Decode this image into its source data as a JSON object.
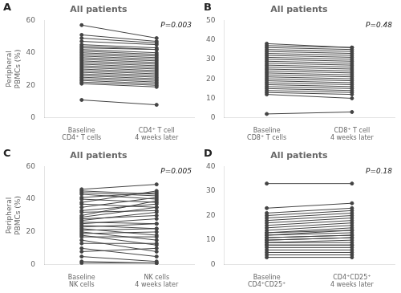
{
  "chart_data": [
    {
      "type": "line",
      "title": "All patients",
      "ylabel": "Peripheral\nPBMCs (%)",
      "annotations": [
        "A",
        "P=0.003"
      ],
      "categories": [
        "Baseline\nCD4⁺ T cells",
        "CD4⁺ T cell\n4 weeks later"
      ],
      "color": "#444444",
      "grid": false,
      "ylim": [
        0,
        60
      ],
      "yticks": [
        0,
        20,
        40,
        60
      ],
      "series": [
        {
          "values": [
            57,
            49
          ]
        },
        {
          "values": [
            51,
            47
          ]
        },
        {
          "values": [
            49,
            46
          ]
        },
        {
          "values": [
            47,
            45
          ]
        },
        {
          "values": [
            45,
            43
          ]
        },
        {
          "values": [
            44,
            42
          ]
        },
        {
          "values": [
            43,
            42
          ]
        },
        {
          "values": [
            42,
            40
          ]
        },
        {
          "values": [
            41,
            39
          ]
        },
        {
          "values": [
            40,
            38
          ]
        },
        {
          "values": [
            39,
            37
          ]
        },
        {
          "values": [
            38,
            36
          ]
        },
        {
          "values": [
            37,
            35
          ]
        },
        {
          "values": [
            36,
            34
          ]
        },
        {
          "values": [
            35,
            33
          ]
        },
        {
          "values": [
            34,
            32
          ]
        },
        {
          "values": [
            33,
            31
          ]
        },
        {
          "values": [
            32,
            30
          ]
        },
        {
          "values": [
            31,
            29
          ]
        },
        {
          "values": [
            30,
            28
          ]
        },
        {
          "values": [
            29,
            27
          ]
        },
        {
          "values": [
            28,
            26
          ]
        },
        {
          "values": [
            27,
            25
          ]
        },
        {
          "values": [
            26,
            24
          ]
        },
        {
          "values": [
            25,
            23
          ]
        },
        {
          "values": [
            24,
            22
          ]
        },
        {
          "values": [
            23,
            21
          ]
        },
        {
          "values": [
            22,
            20
          ]
        },
        {
          "values": [
            21,
            19
          ]
        },
        {
          "values": [
            11,
            8
          ]
        }
      ]
    },
    {
      "type": "line",
      "title": "All patients",
      "annotations": [
        "B",
        "P=0.48"
      ],
      "categories": [
        "Baseline\nCD8⁺ T cells",
        "CD8⁺ T cell\n4 weeks later"
      ],
      "color": "#444444",
      "grid": false,
      "ylim": [
        0,
        50
      ],
      "yticks": [
        0,
        10,
        20,
        30,
        40,
        50
      ],
      "series": [
        {
          "values": [
            38,
            36
          ]
        },
        {
          "values": [
            37,
            36
          ]
        },
        {
          "values": [
            36,
            35
          ]
        },
        {
          "values": [
            35,
            34
          ]
        },
        {
          "values": [
            34,
            33
          ]
        },
        {
          "values": [
            33,
            32
          ]
        },
        {
          "values": [
            32,
            31
          ]
        },
        {
          "values": [
            31,
            30
          ]
        },
        {
          "values": [
            30,
            29
          ]
        },
        {
          "values": [
            29,
            28
          ]
        },
        {
          "values": [
            28,
            27
          ]
        },
        {
          "values": [
            27,
            26
          ]
        },
        {
          "values": [
            26,
            25
          ]
        },
        {
          "values": [
            25,
            24
          ]
        },
        {
          "values": [
            24,
            23
          ]
        },
        {
          "values": [
            23,
            22
          ]
        },
        {
          "values": [
            22,
            21
          ]
        },
        {
          "values": [
            21,
            20
          ]
        },
        {
          "values": [
            20,
            19
          ]
        },
        {
          "values": [
            19,
            18
          ]
        },
        {
          "values": [
            18,
            17
          ]
        },
        {
          "values": [
            17,
            16
          ]
        },
        {
          "values": [
            16,
            15
          ]
        },
        {
          "values": [
            15,
            14
          ]
        },
        {
          "values": [
            14,
            13
          ]
        },
        {
          "values": [
            13,
            12
          ]
        },
        {
          "values": [
            12,
            10
          ]
        },
        {
          "values": [
            2,
            3
          ]
        }
      ]
    },
    {
      "type": "line",
      "title": "All patients",
      "ylabel": "Peripheral\nPBMCs (%)",
      "annotations": [
        "C",
        "P=0.005"
      ],
      "categories": [
        "Baseline\nNK cells",
        "NK cells\n4 weeks later"
      ],
      "color": "#444444",
      "grid": false,
      "ylim": [
        0,
        60
      ],
      "yticks": [
        0,
        20,
        40,
        60
      ],
      "series": [
        {
          "values": [
            46,
            49
          ]
        },
        {
          "values": [
            45,
            43
          ]
        },
        {
          "values": [
            44,
            42
          ]
        },
        {
          "values": [
            43,
            40
          ]
        },
        {
          "values": [
            41,
            44
          ]
        },
        {
          "values": [
            40,
            38
          ]
        },
        {
          "values": [
            38,
            45
          ]
        },
        {
          "values": [
            37,
            35
          ]
        },
        {
          "values": [
            35,
            41
          ]
        },
        {
          "values": [
            33,
            37
          ]
        },
        {
          "values": [
            32,
            33
          ]
        },
        {
          "values": [
            30,
            39
          ]
        },
        {
          "values": [
            29,
            35
          ]
        },
        {
          "values": [
            28,
            30
          ]
        },
        {
          "values": [
            27,
            32
          ]
        },
        {
          "values": [
            26,
            25
          ]
        },
        {
          "values": [
            25,
            28
          ]
        },
        {
          "values": [
            24,
            22
          ]
        },
        {
          "values": [
            23,
            25
          ]
        },
        {
          "values": [
            22,
            18
          ]
        },
        {
          "values": [
            21,
            22
          ]
        },
        {
          "values": [
            20,
            15
          ]
        },
        {
          "values": [
            19,
            20
          ]
        },
        {
          "values": [
            18,
            12
          ]
        },
        {
          "values": [
            17,
            17
          ]
        },
        {
          "values": [
            15,
            8
          ]
        },
        {
          "values": [
            13,
            13
          ]
        },
        {
          "values": [
            10,
            5
          ]
        },
        {
          "values": [
            8,
            10
          ]
        },
        {
          "values": [
            5,
            2
          ]
        },
        {
          "values": [
            2,
            1
          ]
        },
        {
          "values": [
            1,
            1
          ]
        }
      ]
    },
    {
      "type": "line",
      "title": "All patients",
      "annotations": [
        "D",
        "P=0.18"
      ],
      "categories": [
        "Baseline\nCD4⁺CD25⁺",
        "CD4⁺CD25⁺\n4 weeks later"
      ],
      "color": "#444444",
      "grid": false,
      "ylim": [
        0,
        40
      ],
      "yticks": [
        0,
        10,
        20,
        30,
        40
      ],
      "series": [
        {
          "values": [
            33,
            33
          ]
        },
        {
          "values": [
            23,
            25
          ]
        },
        {
          "values": [
            21,
            23
          ]
        },
        {
          "values": [
            20,
            22
          ]
        },
        {
          "values": [
            19,
            21
          ]
        },
        {
          "values": [
            18,
            20
          ]
        },
        {
          "values": [
            17,
            19
          ]
        },
        {
          "values": [
            16,
            18
          ]
        },
        {
          "values": [
            15,
            17
          ]
        },
        {
          "values": [
            14,
            16
          ]
        },
        {
          "values": [
            13,
            15
          ]
        },
        {
          "values": [
            13,
            14
          ]
        },
        {
          "values": [
            12,
            14
          ]
        },
        {
          "values": [
            12,
            13
          ]
        },
        {
          "values": [
            11,
            12
          ]
        },
        {
          "values": [
            11,
            12
          ]
        },
        {
          "values": [
            10,
            11
          ]
        },
        {
          "values": [
            10,
            11
          ]
        },
        {
          "values": [
            9,
            10
          ]
        },
        {
          "values": [
            9,
            9
          ]
        },
        {
          "values": [
            8,
            8
          ]
        },
        {
          "values": [
            8,
            8
          ]
        },
        {
          "values": [
            7,
            7
          ]
        },
        {
          "values": [
            6,
            6
          ]
        },
        {
          "values": [
            5,
            5
          ]
        },
        {
          "values": [
            4,
            4
          ]
        },
        {
          "values": [
            3,
            3
          ]
        }
      ]
    }
  ]
}
